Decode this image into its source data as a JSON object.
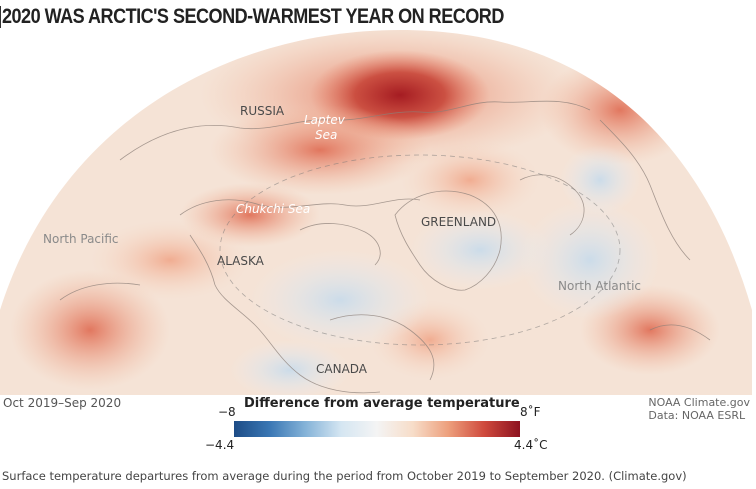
{
  "title": "2020 WAS ARCTIC'S SECOND-WARMEST YEAR ON RECORD",
  "map_labels": {
    "russia": "RUSSIA",
    "laptev_line1": "Laptev",
    "laptev_line2": "Sea",
    "chukchi": "Chukchi Sea",
    "greenland": "GREENLAND",
    "north_pacific": "North Pacific",
    "alaska": "ALASKA",
    "north_atlantic": "North Atlantic",
    "canada": "CANADA"
  },
  "period": "Oct 2019–Sep 2020",
  "credit": {
    "line1": "NOAA Climate.gov",
    "line2": "Data: NOAA ESRL"
  },
  "legend": {
    "title": "Difference from average temperature",
    "min_f": "−8",
    "max_f": "8˚F",
    "min_c": "−4.4",
    "max_c": "4.4˚C",
    "colors": {
      "cold": "#1d4c86",
      "neutral": "#f4f4f4",
      "warm": "#8d1220"
    }
  },
  "caption": "Surface temperature departures from average during the period from October 2019 to September 2020. (Climate.gov)"
}
